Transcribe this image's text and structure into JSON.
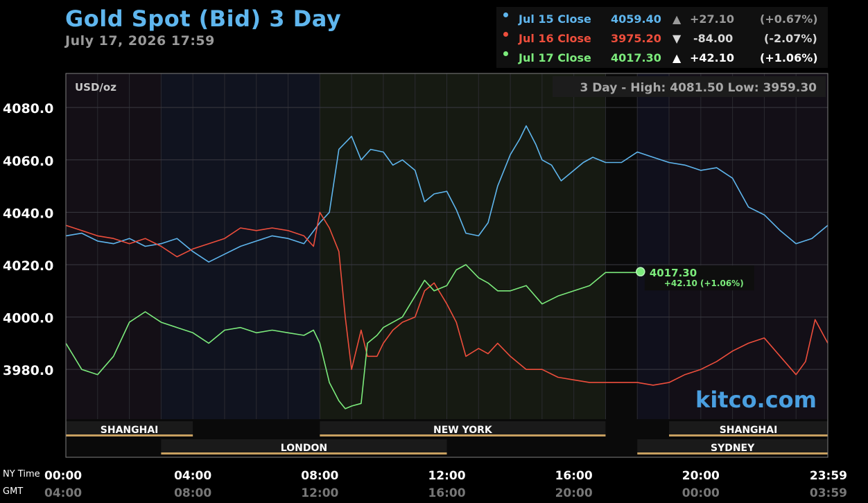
{
  "header": {
    "title": "Gold Spot (Bid) 3 Day",
    "timestamp": "July 17, 2026 17:59"
  },
  "legend": [
    {
      "label": "Jul 15 Close",
      "value": "4059.40",
      "arrow": "▲",
      "change": "+27.10",
      "pct": "(+0.67%)",
      "color": "#5fb6ee"
    },
    {
      "label": "Jul 16 Close",
      "value": "3975.20",
      "arrow": "▼",
      "change": "-84.00",
      "pct": "(-2.07%)",
      "color": "#ee4e3c"
    },
    {
      "label": "Jul 17 Close",
      "value": "4017.30",
      "arrow": "▲",
      "change": "+42.10",
      "pct": "(+1.06%)",
      "color": "#7ceb7c"
    }
  ],
  "chart_data": {
    "type": "line",
    "unit_label": "USD/oz",
    "high_low_text": "3 Day - High: 4081.50  Low: 3959.30",
    "watermark": "kitco.com",
    "ylim": [
      3961,
      4093
    ],
    "yticks": [
      "4080.0",
      "4060.0",
      "4040.0",
      "4020.0",
      "4000.0",
      "3980.0"
    ],
    "ytick_values": [
      4080,
      4060,
      4040,
      4020,
      4000,
      3980
    ],
    "x_range_hours": [
      0,
      24
    ],
    "xticks_ny": [
      "00:00",
      "04:00",
      "08:00",
      "12:00",
      "16:00",
      "20:00",
      "23:59"
    ],
    "xticks_gmt": [
      "04:00",
      "08:00",
      "12:00",
      "16:00",
      "20:00",
      "00:00",
      "03:59"
    ],
    "xtick_hours": [
      0,
      4,
      8,
      12,
      16,
      20,
      24
    ],
    "row_label_ny": "NY Time",
    "row_label_gmt": "GMT",
    "markets": [
      {
        "name": "SHANGHAI",
        "start": 0,
        "end": 4,
        "row": 0
      },
      {
        "name": "LONDON",
        "start": 3,
        "end": 12,
        "row": 1
      },
      {
        "name": "NEW YORK",
        "start": 8,
        "end": 17,
        "row": 0
      },
      {
        "name": "SHANGHAI",
        "start": 19,
        "end": 24,
        "row": 0
      },
      {
        "name": "SYDNEY",
        "start": 18,
        "end": 24,
        "row": 1
      }
    ],
    "current": {
      "value": "4017.30",
      "change": "+42.10 (+1.06%)",
      "hour": 18.1,
      "y": 4017.3
    },
    "series": [
      {
        "name": "Jul 15 Close",
        "color": "#5fb6ee",
        "x": [
          0,
          0.5,
          1,
          1.5,
          2,
          2.5,
          3,
          3.5,
          4,
          4.5,
          5,
          5.5,
          6,
          6.5,
          7,
          7.5,
          8,
          8.3,
          8.6,
          9,
          9.3,
          9.6,
          10,
          10.3,
          10.6,
          11,
          11.3,
          11.6,
          12,
          12.3,
          12.6,
          13,
          13.3,
          13.6,
          14,
          14.3,
          14.5,
          14.8,
          15,
          15.3,
          15.6,
          16,
          16.3,
          16.6,
          17,
          17.5,
          18,
          18.5,
          19,
          19.5,
          20,
          20.5,
          21,
          21.5,
          22,
          22.5,
          23,
          23.5,
          24
        ],
        "y": [
          4031,
          4032,
          4029,
          4028,
          4030,
          4027,
          4028,
          4030,
          4025,
          4021,
          4024,
          4027,
          4029,
          4031,
          4030,
          4028,
          4036,
          4040,
          4064,
          4069,
          4060,
          4064,
          4063,
          4058,
          4060,
          4056,
          4044,
          4047,
          4048,
          4041,
          4032,
          4031,
          4036,
          4050,
          4062,
          4068,
          4073,
          4066,
          4060,
          4058,
          4052,
          4056,
          4059,
          4061,
          4059,
          4059,
          4063,
          4061,
          4059,
          4058,
          4056,
          4057,
          4053,
          4042,
          4039,
          4033,
          4028,
          4030,
          4035
        ]
      },
      {
        "name": "Jul 16 Close",
        "color": "#ee4e3c",
        "x": [
          0,
          0.5,
          1,
          1.5,
          2,
          2.5,
          3,
          3.5,
          4,
          4.5,
          5,
          5.5,
          6,
          6.5,
          7,
          7.5,
          7.8,
          8,
          8.3,
          8.6,
          8.8,
          9,
          9.3,
          9.5,
          9.8,
          10,
          10.3,
          10.6,
          11,
          11.3,
          11.6,
          12,
          12.3,
          12.6,
          13,
          13.3,
          13.6,
          14,
          14.5,
          15,
          15.5,
          16,
          16.5,
          17,
          17.5,
          18,
          18.5,
          19,
          19.5,
          20,
          20.5,
          21,
          21.5,
          22,
          22.5,
          23,
          23.3,
          23.6,
          24
        ],
        "y": [
          4035,
          4033,
          4031,
          4030,
          4028,
          4030,
          4027,
          4023,
          4026,
          4028,
          4030,
          4034,
          4033,
          4034,
          4033,
          4031,
          4027,
          4040,
          4034,
          4025,
          4000,
          3980,
          3995,
          3985,
          3985,
          3990,
          3995,
          3998,
          4000,
          4010,
          4013,
          4005,
          3998,
          3985,
          3988,
          3986,
          3990,
          3985,
          3980,
          3980,
          3977,
          3976,
          3975,
          3975,
          3975,
          3975,
          3974,
          3975,
          3978,
          3980,
          3983,
          3987,
          3990,
          3992,
          3985,
          3978,
          3983,
          3999,
          3990
        ]
      },
      {
        "name": "Jul 17 Close",
        "color": "#7ceb7c",
        "x": [
          0,
          0.5,
          1,
          1.5,
          2,
          2.5,
          3,
          3.5,
          4,
          4.5,
          5,
          5.5,
          6,
          6.5,
          7,
          7.5,
          7.8,
          8,
          8.3,
          8.6,
          8.8,
          9,
          9.3,
          9.5,
          9.8,
          10,
          10.3,
          10.6,
          11,
          11.3,
          11.6,
          12,
          12.3,
          12.6,
          13,
          13.3,
          13.6,
          14,
          14.5,
          15,
          15.5,
          16,
          16.5,
          17,
          17.5,
          18.1
        ],
        "y": [
          3990,
          3980,
          3978,
          3985,
          3998,
          4002,
          3998,
          3996,
          3994,
          3990,
          3995,
          3996,
          3994,
          3995,
          3994,
          3993,
          3995,
          3990,
          3975,
          3968,
          3965,
          3966,
          3967,
          3990,
          3993,
          3996,
          3998,
          4000,
          4008,
          4014,
          4010,
          4012,
          4018,
          4020,
          4015,
          4013,
          4010,
          4010,
          4012,
          4005,
          4008,
          4010,
          4012,
          4017,
          4017,
          4017
        ]
      }
    ]
  }
}
